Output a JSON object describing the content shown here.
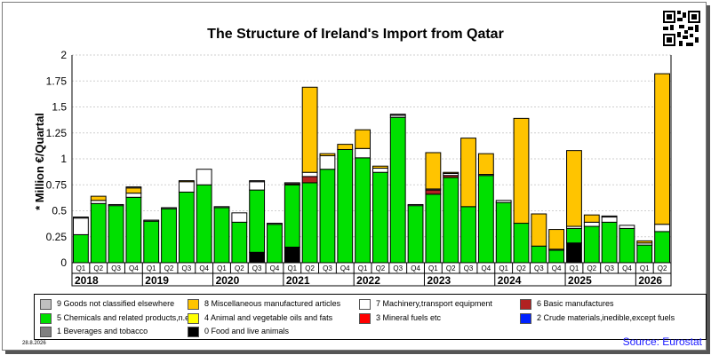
{
  "date": "28.8.2026",
  "source": "Source: Eurostat",
  "chart_data": {
    "type": "bar",
    "stacked": true,
    "title": "The Structure of Ireland's Import from Qatar",
    "ylabel": "* Million €/Quartal",
    "ylim": [
      0,
      2
    ],
    "yticks": [
      "0",
      "0.25",
      "0.5",
      "0.75",
      "1",
      "1.25",
      "1.5",
      "1.75",
      "2"
    ],
    "grid": true,
    "legend_position": "bottom",
    "categories": [
      "Q1",
      "Q2",
      "Q3",
      "Q4",
      "Q1",
      "Q2",
      "Q3",
      "Q4",
      "Q1",
      "Q2",
      "Q3",
      "Q4",
      "Q1",
      "Q2",
      "Q3",
      "Q4",
      "Q1",
      "Q2",
      "Q3",
      "Q4",
      "Q1",
      "Q2",
      "Q3",
      "Q4",
      "Q1",
      "Q2",
      "Q3",
      "Q4",
      "Q1",
      "Q2",
      "Q3",
      "Q4",
      "Q1",
      "Q2"
    ],
    "years": [
      {
        "label": "2018",
        "start": 0,
        "count": 4
      },
      {
        "label": "2019",
        "start": 4,
        "count": 4
      },
      {
        "label": "2020",
        "start": 8,
        "count": 4
      },
      {
        "label": "2021",
        "start": 12,
        "count": 4
      },
      {
        "label": "2022",
        "start": 16,
        "count": 4
      },
      {
        "label": "2023",
        "start": 20,
        "count": 4
      },
      {
        "label": "2024",
        "start": 24,
        "count": 4
      },
      {
        "label": "2025",
        "start": 28,
        "count": 4
      },
      {
        "label": "2026",
        "start": 32,
        "count": 2
      }
    ],
    "series": [
      {
        "name": "0 Food and live animals",
        "color": "#000000",
        "values": [
          0,
          0,
          0,
          0,
          0,
          0,
          0,
          0,
          0,
          0,
          0.1,
          0,
          0.15,
          0,
          0,
          0,
          0,
          0,
          0,
          0,
          0,
          0,
          0,
          0,
          0,
          0,
          0,
          0,
          0.19,
          0,
          0,
          0,
          0,
          0
        ]
      },
      {
        "name": "5 Chemicals and related products,n.e.s.",
        "color": "#00e000",
        "values": [
          0.27,
          0.57,
          0.55,
          0.63,
          0.4,
          0.52,
          0.68,
          0.75,
          0.53,
          0.39,
          0.6,
          0.37,
          0.6,
          0.77,
          0.9,
          1.09,
          1.01,
          0.87,
          1.4,
          0.55,
          0.66,
          0.82,
          0.54,
          0.84,
          0.58,
          0.38,
          0.16,
          0.12,
          0.14,
          0.35,
          0.39,
          0.33,
          0.17,
          0.3
        ]
      },
      {
        "name": "6 Basic manufactures",
        "color": "#b22222",
        "values": [
          0,
          0,
          0,
          0,
          0,
          0,
          0,
          0,
          0,
          0,
          0,
          0,
          0.01,
          0.06,
          0,
          0,
          0,
          0,
          0,
          0,
          0.04,
          0.02,
          0,
          0,
          0,
          0,
          0,
          0,
          0,
          0,
          0,
          0,
          0,
          0
        ]
      },
      {
        "name": "7 Machinery,transport equipment",
        "color": "#ffffff",
        "values": [
          0.16,
          0.03,
          0.01,
          0.04,
          0.01,
          0.01,
          0.1,
          0.15,
          0.01,
          0.09,
          0.08,
          0.01,
          0.01,
          0.04,
          0.13,
          0,
          0.09,
          0.04,
          0.02,
          0.01,
          0.01,
          0.02,
          0,
          0.01,
          0.02,
          0,
          0,
          0.01,
          0.02,
          0.04,
          0.05,
          0.03,
          0.02,
          0.07
        ]
      },
      {
        "name": "8 Miscellaneous manufactured articles",
        "color": "#ffc400",
        "values": [
          0,
          0.04,
          0,
          0.05,
          0,
          0,
          0.01,
          0,
          0,
          0,
          0,
          0,
          0,
          0.82,
          0.02,
          0.05,
          0.18,
          0.02,
          0,
          0,
          0.35,
          0.01,
          0.66,
          0.2,
          0,
          1.01,
          0.31,
          0.19,
          0.73,
          0.07,
          0,
          0,
          0.02,
          1.45
        ]
      },
      {
        "name": "9 Goods not classified elsewhere",
        "color": "#c0c0c0",
        "values": [
          0.01,
          0,
          0,
          0.01,
          0,
          0,
          0,
          0,
          0,
          0,
          0.01,
          0,
          0,
          0,
          0,
          0,
          0,
          0,
          0.01,
          0,
          0,
          0,
          0,
          0,
          0,
          0,
          0,
          0,
          0,
          0,
          0.01,
          0,
          0,
          0
        ]
      }
    ],
    "legend": [
      {
        "name": "9 Goods not classified elsewhere",
        "color": "#c0c0c0"
      },
      {
        "name": "8 Miscellaneous manufactured articles",
        "color": "#ffc400"
      },
      {
        "name": "7 Machinery,transport equipment",
        "color": "#ffffff"
      },
      {
        "name": "6 Basic manufactures",
        "color": "#b22222"
      },
      {
        "name": "5 Chemicals and related products,n.e.s.",
        "color": "#00e000"
      },
      {
        "name": "4 Animal and vegetable oils and fats",
        "color": "#ffff00"
      },
      {
        "name": "3 Mineral fuels etc",
        "color": "#ff0000"
      },
      {
        "name": "2 Crude materials,inedible,except fuels",
        "color": "#0022ff"
      },
      {
        "name": "1 Beverages and tobacco",
        "color": "#808080"
      },
      {
        "name": "0 Food and live animals",
        "color": "#000000"
      }
    ]
  }
}
